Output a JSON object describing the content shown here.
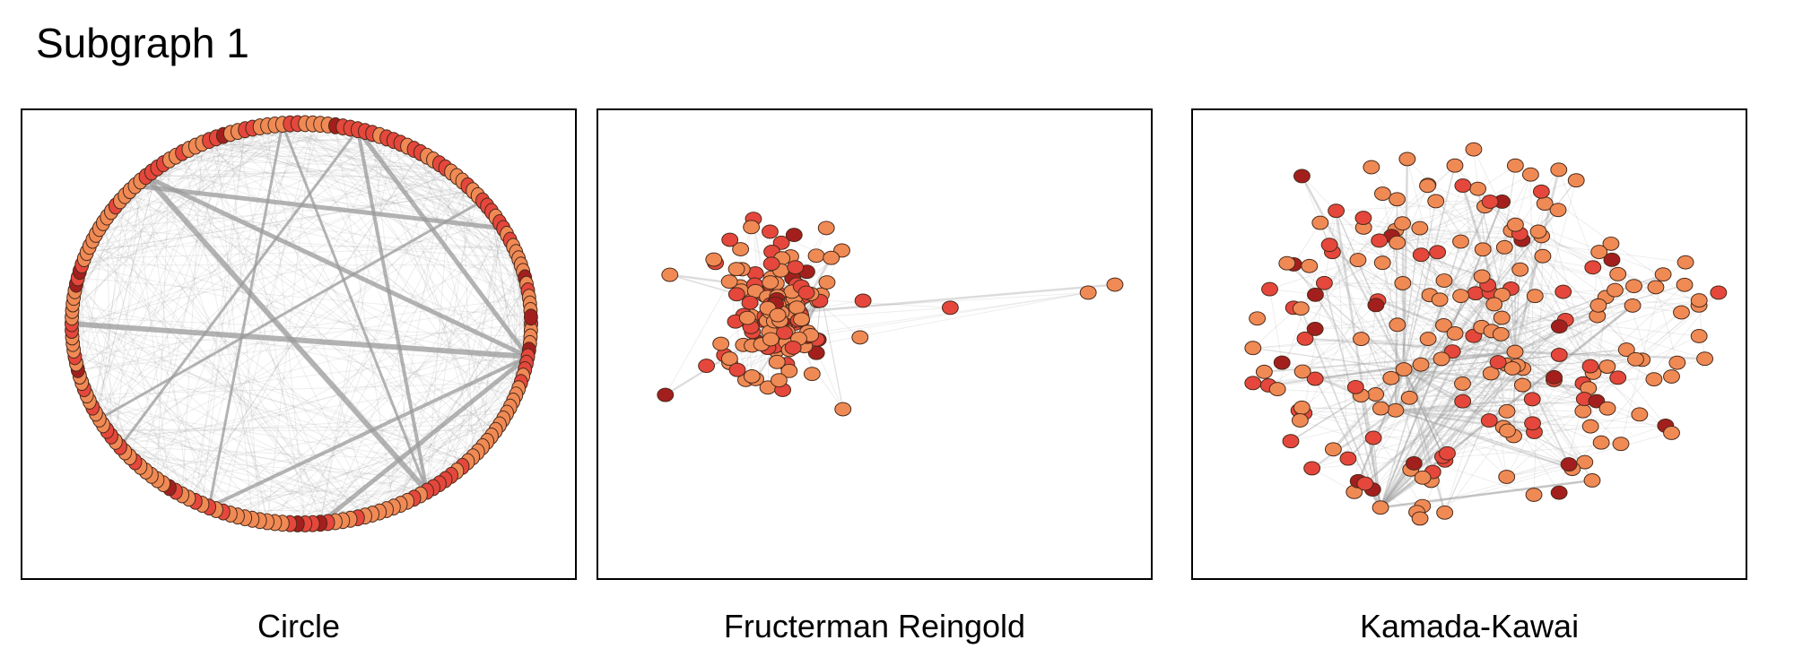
{
  "title": "Subgraph 1",
  "node_colors": {
    "light": "#f08a55",
    "medium": "#e5473c",
    "dark": "#a31f1d",
    "stroke": "#4a2a1a",
    "edge": "#9a9a9a"
  },
  "panels": [
    {
      "caption": "Circle",
      "layout": "circle"
    },
    {
      "caption": "Fructerman Reingold",
      "layout": "fruchterman-reingold"
    },
    {
      "caption": "Kamada-Kawai",
      "layout": "kamada-kawai"
    }
  ]
}
